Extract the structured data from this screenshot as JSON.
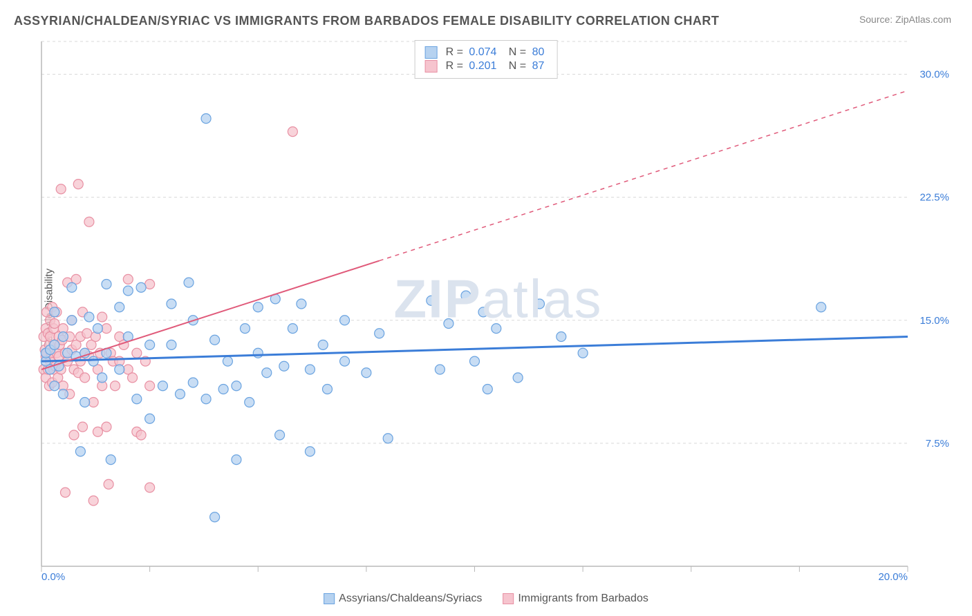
{
  "title": "ASSYRIAN/CHALDEAN/SYRIAC VS IMMIGRANTS FROM BARBADOS FEMALE DISABILITY CORRELATION CHART",
  "source": "Source: ZipAtlas.com",
  "watermark_bold": "ZIP",
  "watermark_light": "atlas",
  "ylabel": "Female Disability",
  "chart": {
    "type": "scatter",
    "xlim": [
      0.0,
      20.0
    ],
    "ylim": [
      0.0,
      32.0
    ],
    "x_ticks": [
      0.0,
      20.0
    ],
    "x_tick_labels": [
      "0.0%",
      "20.0%"
    ],
    "x_minor_ticks": [
      2.5,
      5.0,
      7.5,
      10.0,
      12.5,
      15.0,
      17.5
    ],
    "y_ticks": [
      7.5,
      15.0,
      22.5,
      30.0
    ],
    "y_tick_labels": [
      "7.5%",
      "15.0%",
      "22.5%",
      "30.0%"
    ],
    "grid_color": "#d8d8d8",
    "axis_color": "#b8b8b8",
    "tick_label_color": "#3b7dd8",
    "background_color": "#ffffff",
    "marker_radius": 7,
    "series": [
      {
        "id": "assyrians",
        "label": "Assyrians/Chaldeans/Syriacs",
        "fill": "#b6d2f0",
        "stroke": "#6aa3e0",
        "line_color": "#3b7dd8",
        "line_width": 3,
        "r": "0.074",
        "n": "80",
        "trend": {
          "x1": 0.0,
          "y1": 12.5,
          "x2": 20.0,
          "y2": 14.0,
          "solid_until_x": 20.0
        },
        "points": [
          [
            0.1,
            12.5
          ],
          [
            0.1,
            13.0
          ],
          [
            0.2,
            12.0
          ],
          [
            0.2,
            13.2
          ],
          [
            0.3,
            13.5
          ],
          [
            0.3,
            11.0
          ],
          [
            0.3,
            15.5
          ],
          [
            0.4,
            12.2
          ],
          [
            0.5,
            14.0
          ],
          [
            0.5,
            10.5
          ],
          [
            0.6,
            13.0
          ],
          [
            0.7,
            15.0
          ],
          [
            0.7,
            17.0
          ],
          [
            0.8,
            12.8
          ],
          [
            0.9,
            7.0
          ],
          [
            1.0,
            13.0
          ],
          [
            1.0,
            10.0
          ],
          [
            1.1,
            15.2
          ],
          [
            1.2,
            12.5
          ],
          [
            1.3,
            14.5
          ],
          [
            1.4,
            11.5
          ],
          [
            1.5,
            17.2
          ],
          [
            1.5,
            13.0
          ],
          [
            1.6,
            6.5
          ],
          [
            1.8,
            15.8
          ],
          [
            1.8,
            12.0
          ],
          [
            2.0,
            14.0
          ],
          [
            2.0,
            16.8
          ],
          [
            2.2,
            10.2
          ],
          [
            2.3,
            17.0
          ],
          [
            2.5,
            13.5
          ],
          [
            2.5,
            9.0
          ],
          [
            2.8,
            11.0
          ],
          [
            3.0,
            13.5
          ],
          [
            3.0,
            16.0
          ],
          [
            3.2,
            10.5
          ],
          [
            3.4,
            17.3
          ],
          [
            3.5,
            15.0
          ],
          [
            3.5,
            11.2
          ],
          [
            3.8,
            10.2
          ],
          [
            3.8,
            27.3
          ],
          [
            4.0,
            13.8
          ],
          [
            4.0,
            3.0
          ],
          [
            4.2,
            10.8
          ],
          [
            4.3,
            12.5
          ],
          [
            4.5,
            6.5
          ],
          [
            4.5,
            11.0
          ],
          [
            4.7,
            14.5
          ],
          [
            4.8,
            10.0
          ],
          [
            5.0,
            13.0
          ],
          [
            5.0,
            15.8
          ],
          [
            5.2,
            11.8
          ],
          [
            5.4,
            16.3
          ],
          [
            5.5,
            8.0
          ],
          [
            5.6,
            12.2
          ],
          [
            5.8,
            14.5
          ],
          [
            6.0,
            16.0
          ],
          [
            6.2,
            7.0
          ],
          [
            6.2,
            12.0
          ],
          [
            6.5,
            13.5
          ],
          [
            6.6,
            10.8
          ],
          [
            7.0,
            15.0
          ],
          [
            7.0,
            12.5
          ],
          [
            7.5,
            11.8
          ],
          [
            7.8,
            14.2
          ],
          [
            8.0,
            7.8
          ],
          [
            9.0,
            16.2
          ],
          [
            9.2,
            12.0
          ],
          [
            9.4,
            14.8
          ],
          [
            9.8,
            16.5
          ],
          [
            10.0,
            12.5
          ],
          [
            10.2,
            15.5
          ],
          [
            10.3,
            10.8
          ],
          [
            10.5,
            14.5
          ],
          [
            11.0,
            11.5
          ],
          [
            11.5,
            16.0
          ],
          [
            12.0,
            14.0
          ],
          [
            12.5,
            13.0
          ],
          [
            18.0,
            15.8
          ]
        ]
      },
      {
        "id": "barbados",
        "label": "Immigrants from Barbados",
        "fill": "#f6c4ce",
        "stroke": "#e890a3",
        "line_color": "#e05a7a",
        "line_width": 2,
        "r": "0.201",
        "n": "87",
        "trend": {
          "x1": 0.0,
          "y1": 12.0,
          "x2": 20.0,
          "y2": 29.0,
          "solid_until_x": 7.8
        },
        "points": [
          [
            0.05,
            14.0
          ],
          [
            0.05,
            12.0
          ],
          [
            0.08,
            13.2
          ],
          [
            0.1,
            14.5
          ],
          [
            0.1,
            12.8
          ],
          [
            0.1,
            11.5
          ],
          [
            0.12,
            15.5
          ],
          [
            0.12,
            13.0
          ],
          [
            0.15,
            12.0
          ],
          [
            0.15,
            14.2
          ],
          [
            0.18,
            13.5
          ],
          [
            0.18,
            11.0
          ],
          [
            0.2,
            15.0
          ],
          [
            0.2,
            12.5
          ],
          [
            0.2,
            14.0
          ],
          [
            0.22,
            13.0
          ],
          [
            0.25,
            15.8
          ],
          [
            0.25,
            11.2
          ],
          [
            0.28,
            14.5
          ],
          [
            0.28,
            12.0
          ],
          [
            0.3,
            13.5
          ],
          [
            0.3,
            14.8
          ],
          [
            0.32,
            12.2
          ],
          [
            0.35,
            13.0
          ],
          [
            0.35,
            15.5
          ],
          [
            0.38,
            11.5
          ],
          [
            0.4,
            14.0
          ],
          [
            0.4,
            12.8
          ],
          [
            0.42,
            13.5
          ],
          [
            0.45,
            23.0
          ],
          [
            0.45,
            12.0
          ],
          [
            0.48,
            13.8
          ],
          [
            0.5,
            14.5
          ],
          [
            0.5,
            11.0
          ],
          [
            0.55,
            4.5
          ],
          [
            0.55,
            13.0
          ],
          [
            0.6,
            17.3
          ],
          [
            0.6,
            12.5
          ],
          [
            0.65,
            14.0
          ],
          [
            0.65,
            10.5
          ],
          [
            0.7,
            13.2
          ],
          [
            0.7,
            15.0
          ],
          [
            0.75,
            8.0
          ],
          [
            0.75,
            12.0
          ],
          [
            0.8,
            13.5
          ],
          [
            0.8,
            17.5
          ],
          [
            0.85,
            11.8
          ],
          [
            0.85,
            23.3
          ],
          [
            0.9,
            14.0
          ],
          [
            0.9,
            12.5
          ],
          [
            0.95,
            15.5
          ],
          [
            0.95,
            8.5
          ],
          [
            1.0,
            13.0
          ],
          [
            1.0,
            11.5
          ],
          [
            1.05,
            14.2
          ],
          [
            1.1,
            12.8
          ],
          [
            1.1,
            21.0
          ],
          [
            1.15,
            13.5
          ],
          [
            1.2,
            10.0
          ],
          [
            1.2,
            4.0
          ],
          [
            1.25,
            14.0
          ],
          [
            1.3,
            12.0
          ],
          [
            1.3,
            8.2
          ],
          [
            1.35,
            13.0
          ],
          [
            1.4,
            15.2
          ],
          [
            1.4,
            11.0
          ],
          [
            1.5,
            14.5
          ],
          [
            1.5,
            8.5
          ],
          [
            1.55,
            5.0
          ],
          [
            1.6,
            13.0
          ],
          [
            1.65,
            12.5
          ],
          [
            1.7,
            11.0
          ],
          [
            1.8,
            14.0
          ],
          [
            1.8,
            12.5
          ],
          [
            1.9,
            13.5
          ],
          [
            2.0,
            17.5
          ],
          [
            2.0,
            12.0
          ],
          [
            2.1,
            11.5
          ],
          [
            2.2,
            8.2
          ],
          [
            2.2,
            13.0
          ],
          [
            2.3,
            8.0
          ],
          [
            2.4,
            12.5
          ],
          [
            2.5,
            4.8
          ],
          [
            2.5,
            11.0
          ],
          [
            2.5,
            17.2
          ],
          [
            5.8,
            26.5
          ]
        ]
      }
    ]
  },
  "legend_lower": [
    {
      "label": "Assyrians/Chaldeans/Syriacs",
      "fill": "#b6d2f0",
      "stroke": "#6aa3e0"
    },
    {
      "label": "Immigrants from Barbados",
      "fill": "#f6c4ce",
      "stroke": "#e890a3"
    }
  ],
  "corr_labels": {
    "r": "R =",
    "n": "N ="
  }
}
